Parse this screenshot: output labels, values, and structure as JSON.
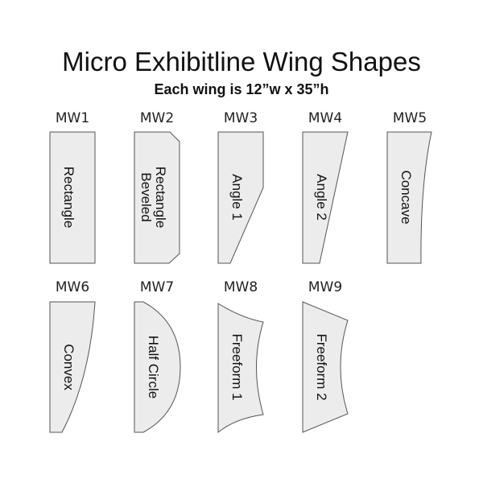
{
  "title": "Micro Exhibitline Wing Shapes",
  "subtitle": "Each wing is 12”w x 35”h",
  "wings": [
    {
      "code": "MW1",
      "name": [
        "Rectangle"
      ]
    },
    {
      "code": "MW2",
      "name": [
        "Beveled",
        "Rectangle"
      ]
    },
    {
      "code": "MW3",
      "name": [
        "Angle 1"
      ]
    },
    {
      "code": "MW4",
      "name": [
        "Angle 2"
      ]
    },
    {
      "code": "MW5",
      "name": [
        "Concave"
      ]
    },
    {
      "code": "MW6",
      "name": [
        "Convex"
      ]
    },
    {
      "code": "MW7",
      "name": [
        "Half Circle"
      ]
    },
    {
      "code": "MW8",
      "name": [
        "Freeform 1"
      ]
    },
    {
      "code": "MW9",
      "name": [
        "Freeform 2"
      ]
    }
  ]
}
